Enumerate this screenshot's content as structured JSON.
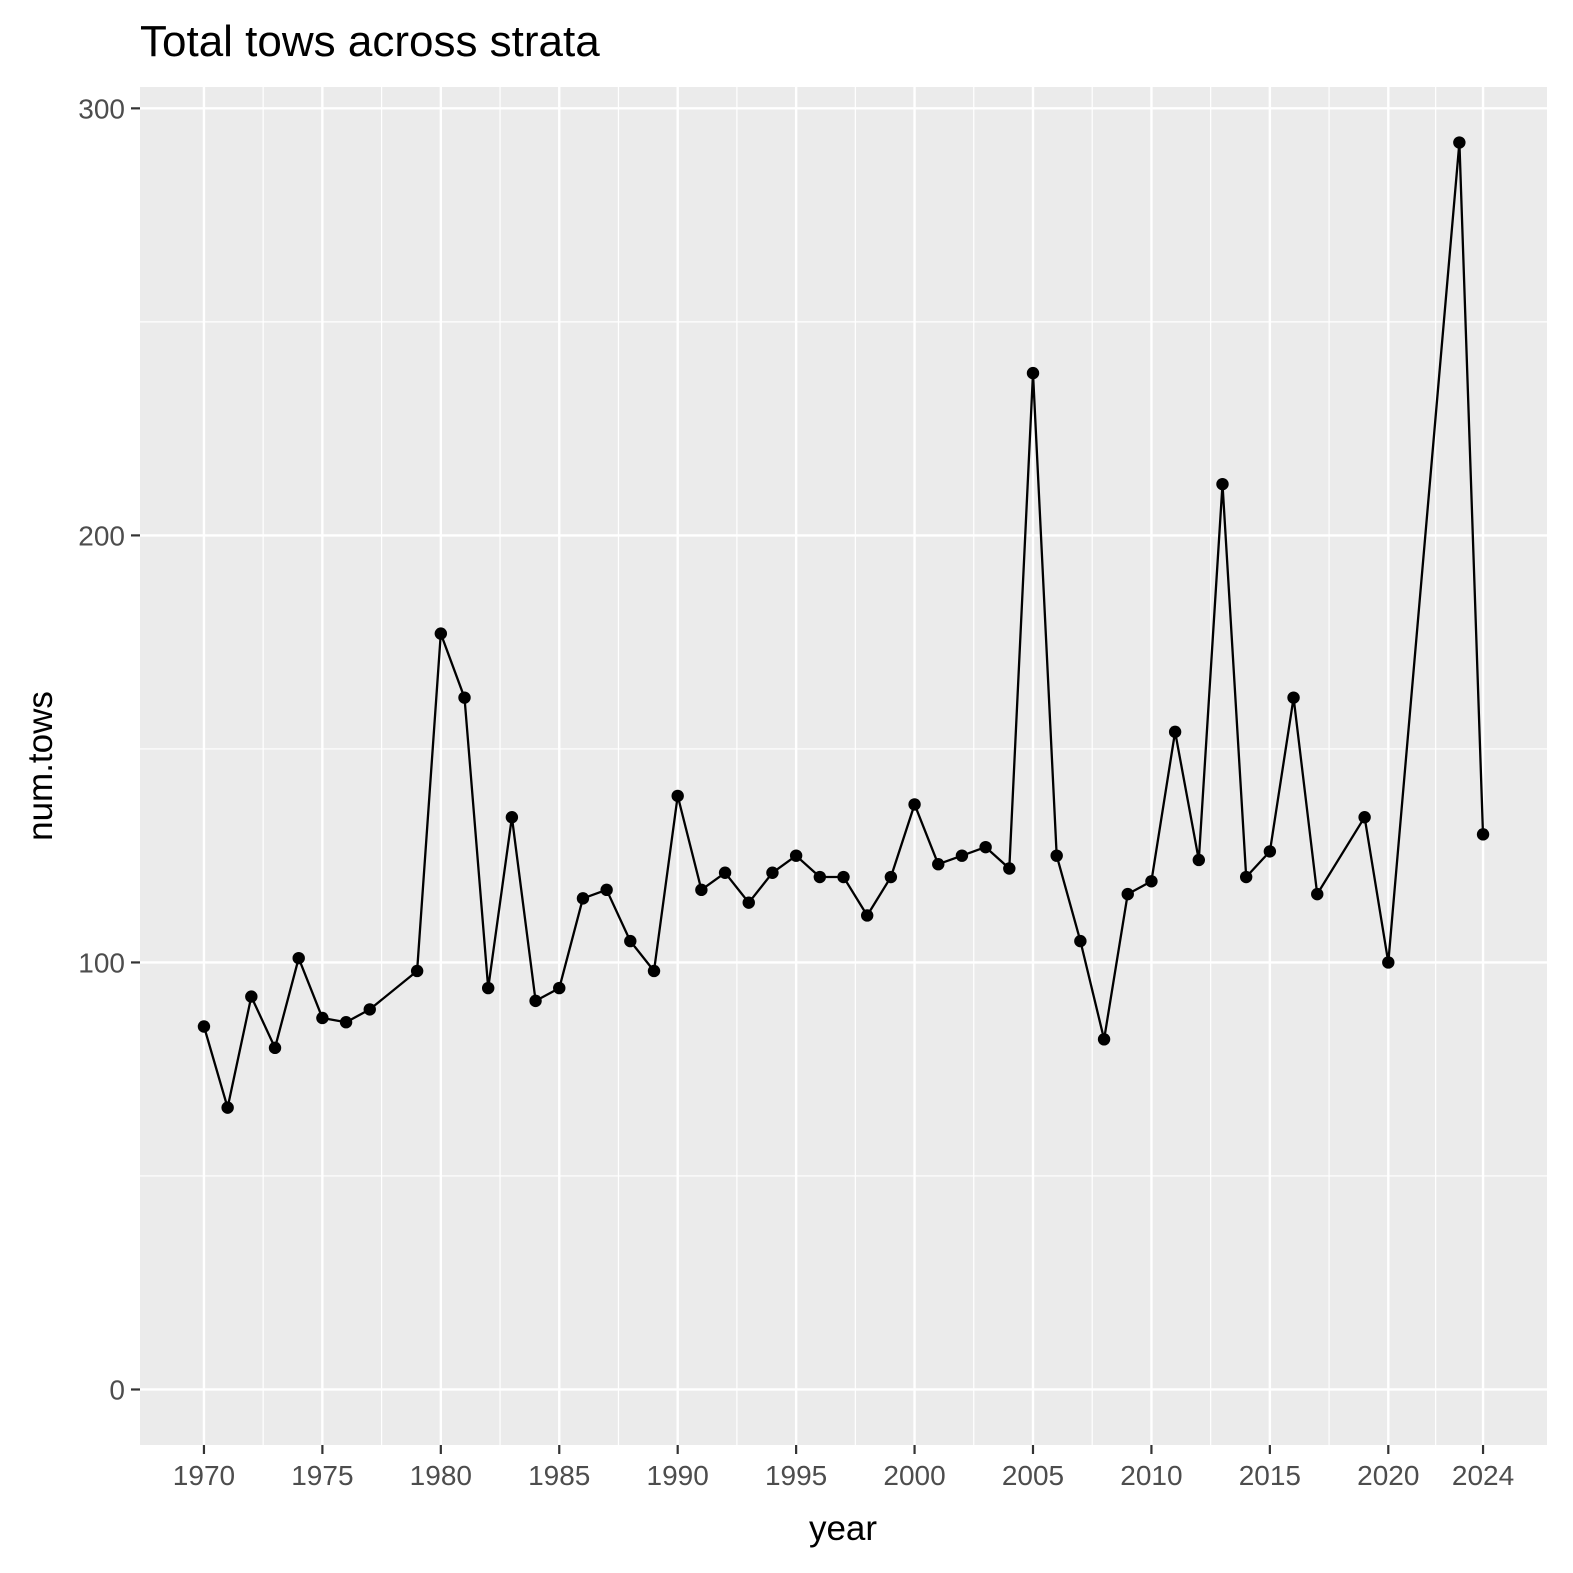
{
  "chart_data": {
    "type": "line",
    "title": "Total tows across strata",
    "xlabel": "year",
    "ylabel": "num.tows",
    "xlim": [
      1967.3,
      2026.7
    ],
    "ylim": [
      -13,
      305
    ],
    "x_ticks": [
      1970,
      1975,
      1980,
      1985,
      1990,
      1995,
      2000,
      2005,
      2010,
      2015,
      2020,
      2024
    ],
    "x_tick_labels": [
      "1970",
      "1975",
      "1980",
      "1985",
      "1990",
      "1995",
      "2000",
      "2005",
      "2010",
      "2015",
      "2020",
      "2024"
    ],
    "y_ticks": [
      0,
      100,
      200,
      300
    ],
    "y_tick_labels": [
      "0",
      "100",
      "200",
      "300"
    ],
    "grid": true,
    "background": "#ebebeb",
    "line_color": "#000000",
    "point_color": "#000000",
    "series": [
      {
        "x": [
          1970,
          1971,
          1972,
          1973,
          1974,
          1975,
          1976,
          1977,
          1979,
          1980,
          1981,
          1982,
          1983,
          1984,
          1985,
          1986,
          1987,
          1988,
          1989,
          1990,
          1991,
          1992,
          1993,
          1994,
          1995,
          1996,
          1997,
          1998,
          1999,
          2000,
          2001,
          2002,
          2003,
          2004,
          2005,
          2006,
          2007,
          2008,
          2009,
          2010,
          2011,
          2012,
          2013,
          2014,
          2015,
          2016,
          2017,
          2019,
          2020,
          2023,
          2024
        ],
        "y": [
          85,
          66,
          92,
          80,
          101,
          87,
          86,
          89,
          98,
          177,
          162,
          94,
          134,
          91,
          94,
          115,
          117,
          105,
          98,
          139,
          117,
          121,
          114,
          121,
          125,
          120,
          120,
          111,
          120,
          137,
          123,
          125,
          127,
          122,
          238,
          125,
          105,
          82,
          116,
          119,
          154,
          124,
          212,
          120,
          126,
          162,
          116,
          134,
          100,
          292,
          130
        ]
      }
    ]
  }
}
